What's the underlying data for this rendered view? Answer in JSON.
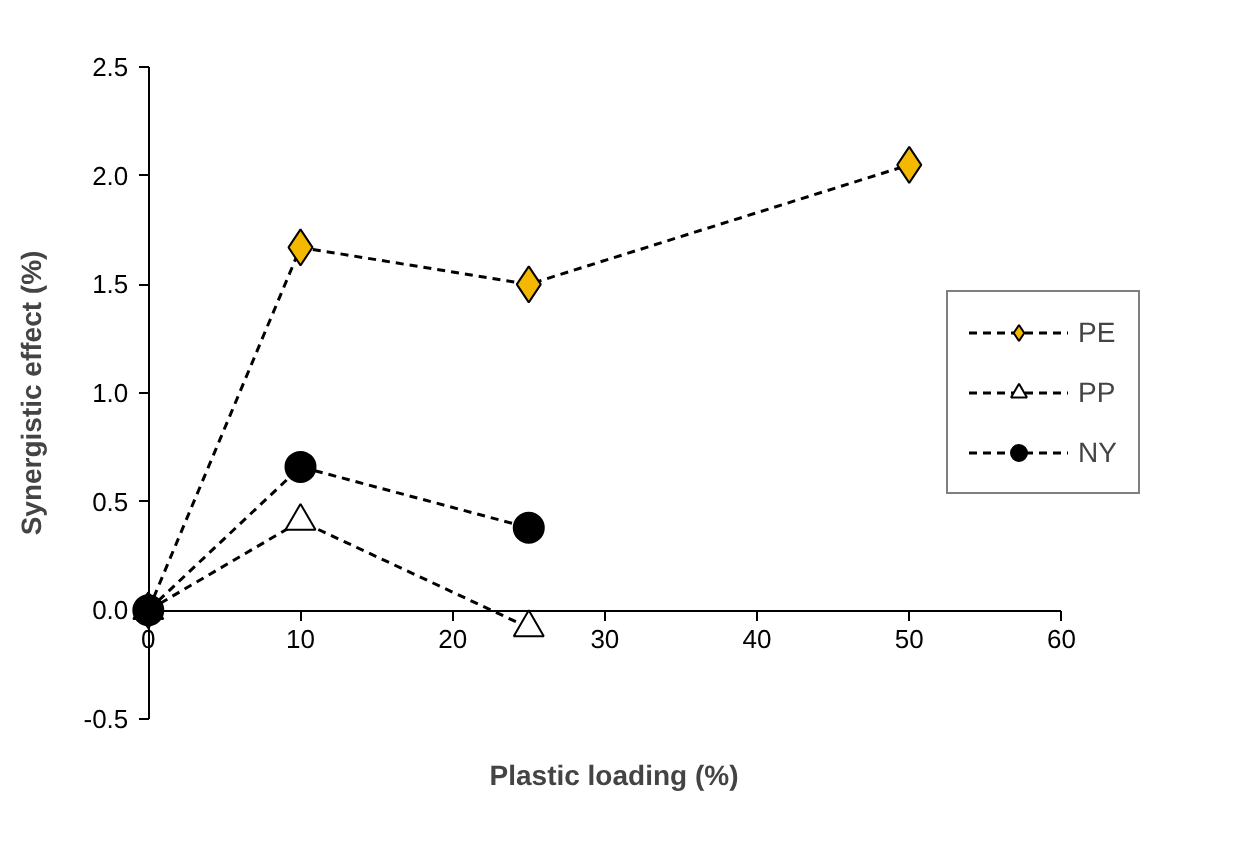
{
  "chart_data": {
    "type": "line",
    "xlabel": "Plastic loading (%)",
    "ylabel": "Synergistic effect (%)",
    "xlim": [
      0,
      60
    ],
    "ylim": [
      -0.5,
      2.5
    ],
    "xticks": [
      0,
      10,
      20,
      30,
      40,
      50,
      60
    ],
    "yticks": [
      {
        "value": -0.5,
        "label": "-0.5"
      },
      {
        "value": 0,
        "label": "0.0"
      },
      {
        "value": 0.5,
        "label": "0.5"
      },
      {
        "value": 1,
        "label": "1.0"
      },
      {
        "value": 1.5,
        "label": "1.5"
      },
      {
        "value": 2,
        "label": "2.0"
      },
      {
        "value": 2.5,
        "label": "2.5"
      }
    ],
    "grid": false,
    "legend": "right",
    "line_style": "dashed",
    "series": [
      {
        "name": "PE",
        "color": "#f5b800",
        "marker": "diamond",
        "x": [
          0,
          10,
          25,
          50
        ],
        "values": [
          0,
          1.67,
          1.5,
          2.05
        ]
      },
      {
        "name": "PP",
        "color": "#ffffff",
        "marker": "triangle",
        "x": [
          0,
          10,
          25
        ],
        "values": [
          0,
          0.41,
          -0.08
        ]
      },
      {
        "name": "NY",
        "color": "#000000",
        "marker": "circle",
        "x": [
          0,
          10,
          25
        ],
        "values": [
          0,
          0.66,
          0.38
        ]
      }
    ]
  }
}
